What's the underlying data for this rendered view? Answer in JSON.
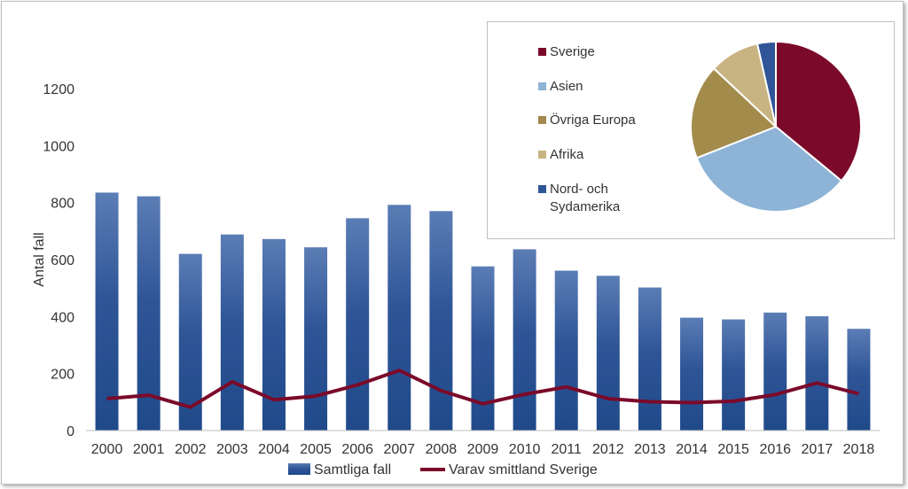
{
  "chart_data": [
    {
      "type": "bar",
      "ylabel": "Antal fall",
      "ylim": [
        0,
        1200
      ],
      "yticks": [
        0,
        200,
        400,
        600,
        800,
        1000,
        1200
      ],
      "grid": false,
      "categories": [
        "2000",
        "2001",
        "2002",
        "2003",
        "2004",
        "2005",
        "2006",
        "2007",
        "2008",
        "2009",
        "2010",
        "2011",
        "2012",
        "2013",
        "2014",
        "2015",
        "2016",
        "2017",
        "2018"
      ],
      "series": [
        {
          "name": "Samtliga fall",
          "type": "bar",
          "color": "#2f5597",
          "values": [
            835,
            822,
            620,
            688,
            672,
            643,
            745,
            792,
            770,
            576,
            636,
            561,
            543,
            502,
            396,
            390,
            414,
            401,
            357
          ]
        },
        {
          "name": "Varav smittland Sverige",
          "type": "line",
          "color": "#7b0a2a",
          "values": [
            112,
            124,
            82,
            171,
            108,
            121,
            160,
            211,
            140,
            94,
            127,
            153,
            112,
            101,
            98,
            103,
            126,
            167,
            129
          ]
        }
      ],
      "legend_position": "bottom"
    },
    {
      "type": "pie",
      "legend_position": "left",
      "slices": [
        {
          "label": "Sverige",
          "value": 36,
          "color": "#7b0a2a"
        },
        {
          "label": "Asien",
          "value": 33,
          "color": "#8db3d6"
        },
        {
          "label": "Övriga Europa",
          "value": 18,
          "color": "#a38b4c"
        },
        {
          "label": "Afrika",
          "value": 9.5,
          "color": "#c8b483"
        },
        {
          "label": "Nord- och Sydamerika",
          "value": 3.5,
          "color": "#2f5597"
        }
      ]
    }
  ]
}
